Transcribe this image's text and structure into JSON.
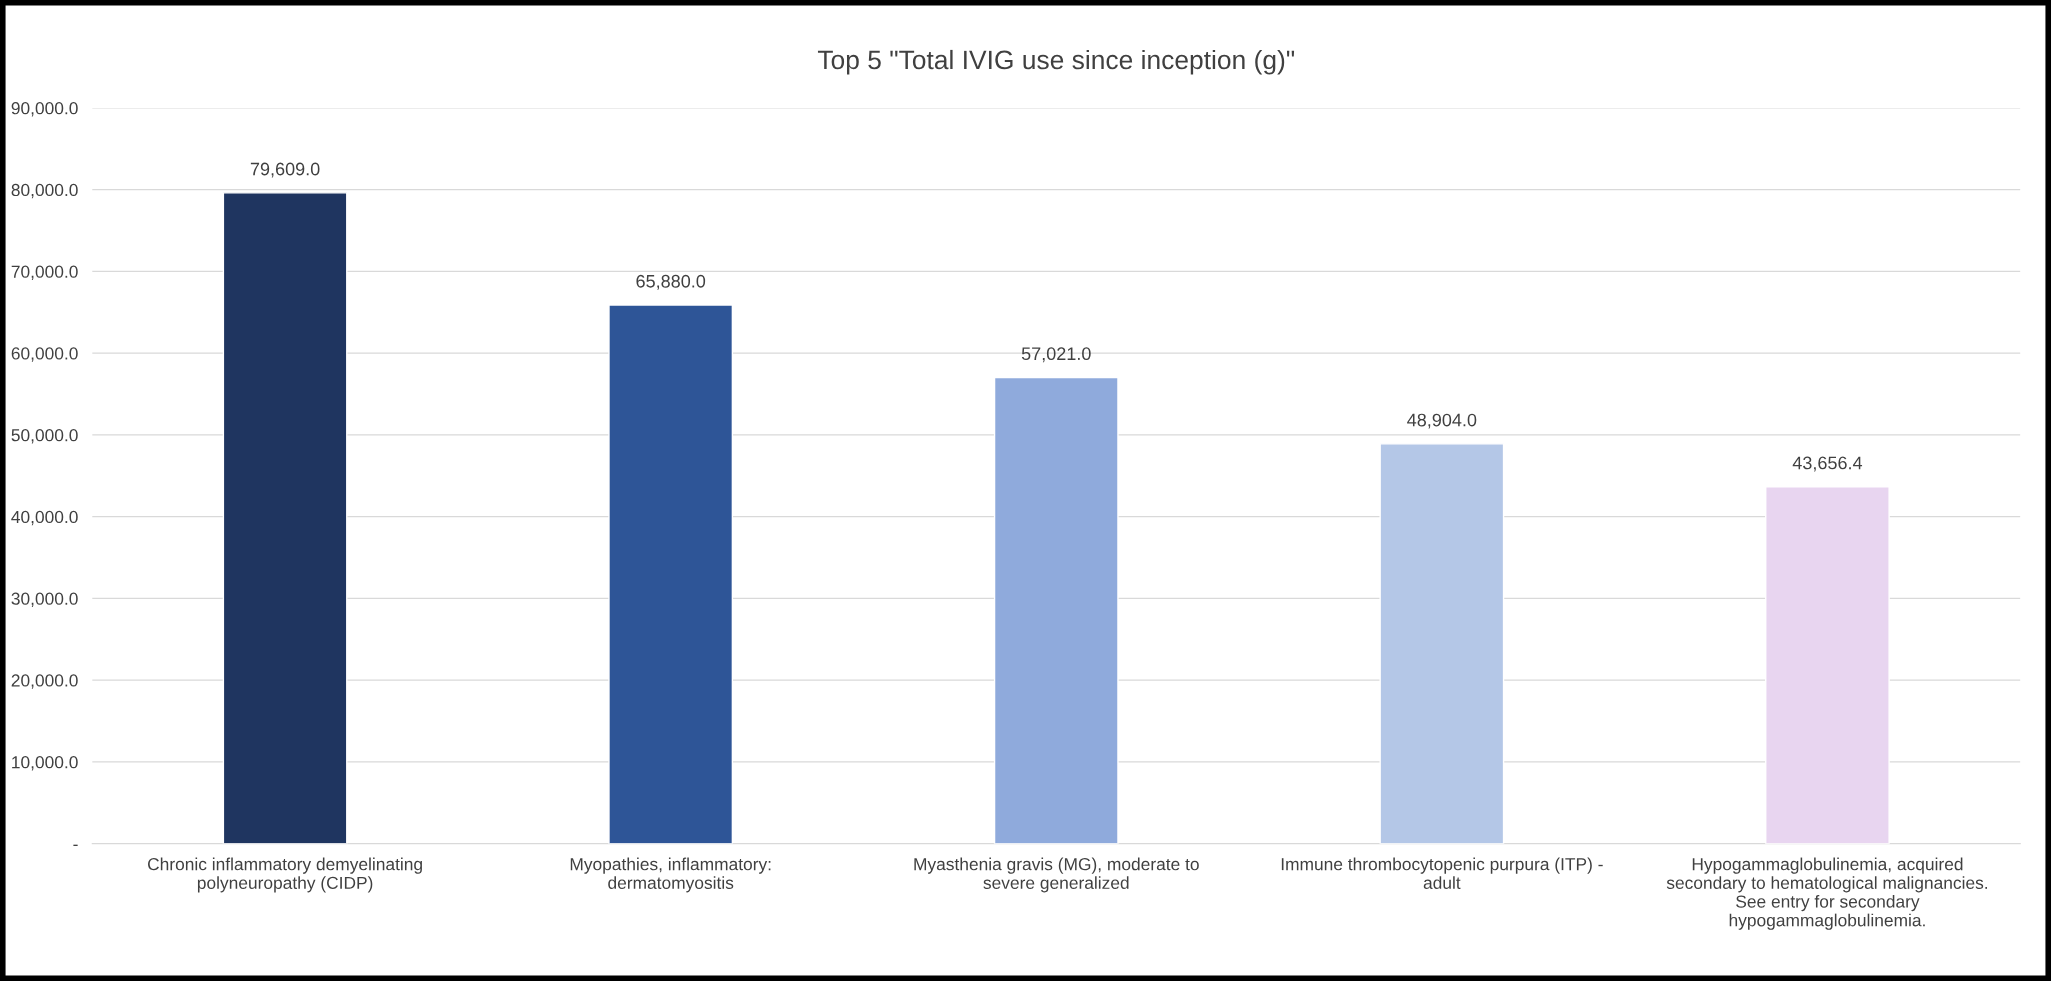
{
  "chart_data": {
    "type": "bar",
    "title": "Top 5 \"Total IVIG use since inception (g)\"",
    "categories": [
      "Chronic inflammatory demyelinating polyneuropathy (CIDP)",
      "Myopathies, inflammatory: dermatomyositis",
      "Myasthenia gravis (MG), moderate to severe generalized",
      "Immune thrombocytopenic purpura (ITP) - adult",
      "Hypogammaglobulinemia, acquired secondary to hematological malignancies. See entry for secondary hypogammaglobulinemia."
    ],
    "values": [
      79609.0,
      65880.0,
      57021.0,
      48904.0,
      43656.4
    ],
    "colors": [
      "#1f3560",
      "#2e5597",
      "#8faadc",
      "#b4c7e7",
      "#e8d5f0"
    ],
    "ylim": [
      0,
      90000
    ],
    "yticks": [
      {
        "value": 0,
        "label": "-"
      },
      {
        "value": 10000,
        "label": "10,000.0"
      },
      {
        "value": 20000,
        "label": "20,000.0"
      },
      {
        "value": 30000,
        "label": "30,000.0"
      },
      {
        "value": 40000,
        "label": "40,000.0"
      },
      {
        "value": 50000,
        "label": "50,000.0"
      },
      {
        "value": 60000,
        "label": "60,000.0"
      },
      {
        "value": 70000,
        "label": "70,000.0"
      },
      {
        "value": 80000,
        "label": "80,000.0"
      },
      {
        "value": 90000,
        "label": "90,000.0"
      }
    ],
    "value_labels": [
      "79,609.0",
      "65,880.0",
      "57,021.0",
      "48,904.0",
      "43,656.4"
    ],
    "grid": "y"
  }
}
